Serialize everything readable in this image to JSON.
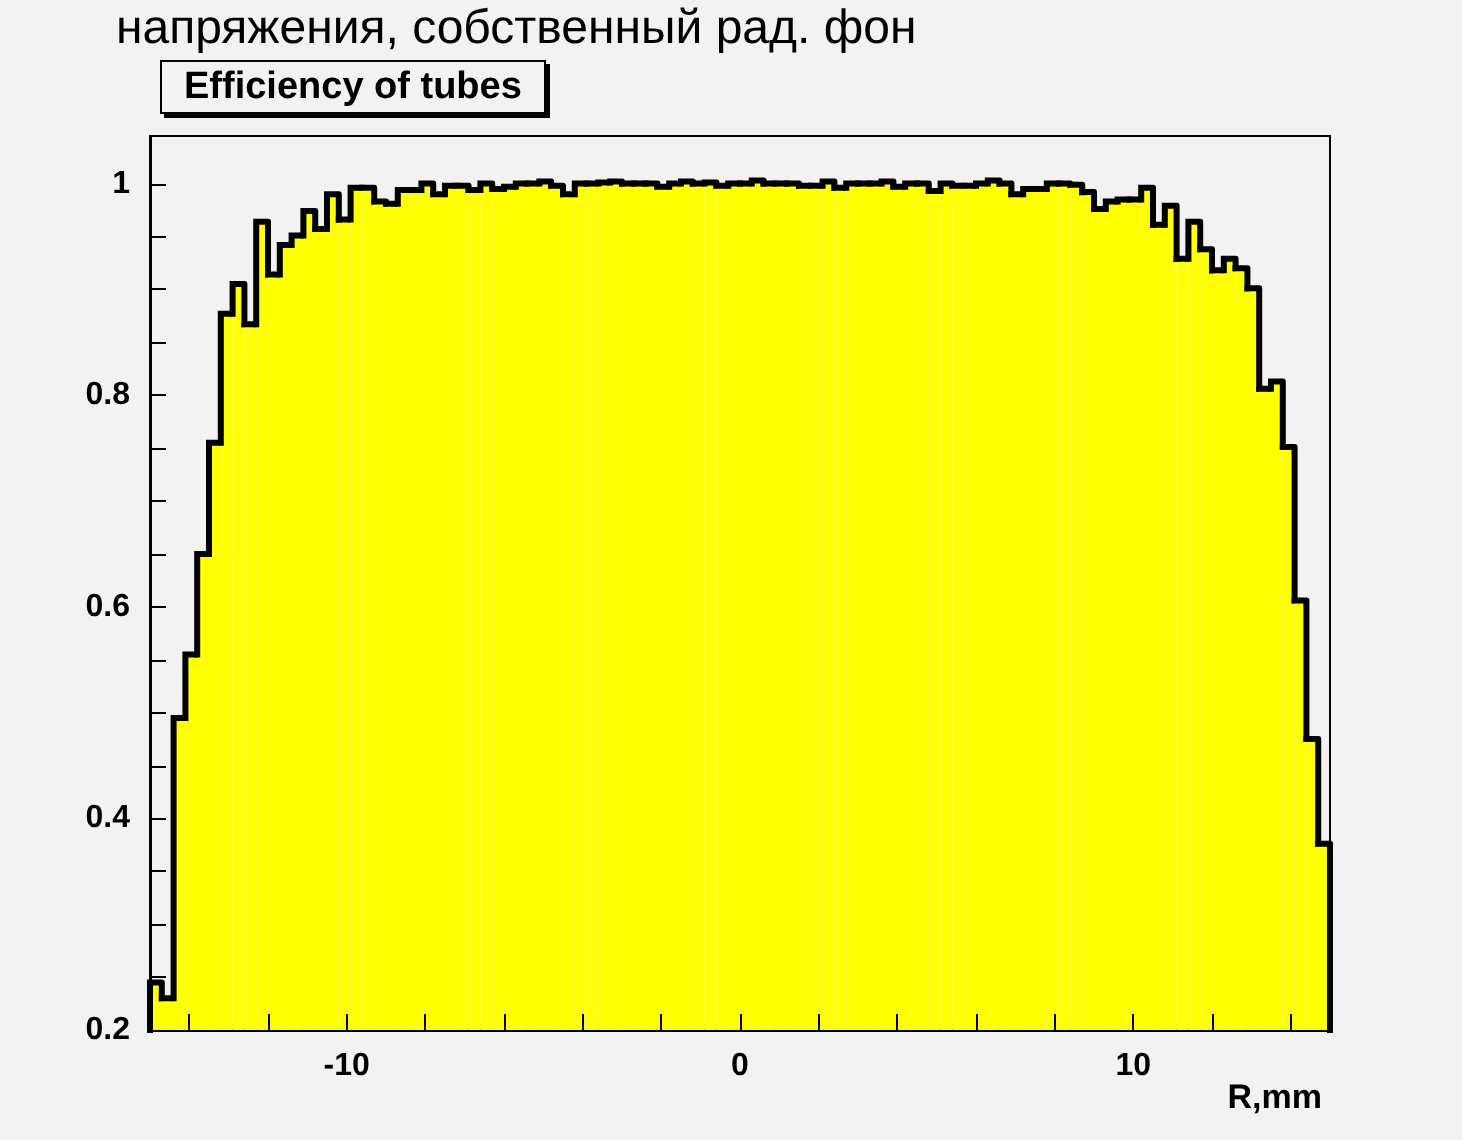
{
  "chart_data": {
    "type": "histogram",
    "title": "Efficiency of tubes",
    "xlabel": "R,mm",
    "annotations": [
      "напряжения, собственный рад. фон"
    ],
    "color": "#ffff00",
    "bins": [
      -15,
      -14.7,
      -14.4,
      -14.1,
      -13.8,
      -13.5,
      -13.2,
      -12.9,
      -12.6,
      -12.3,
      -12,
      -11.7,
      -11.4,
      -11.1,
      -10.8,
      -10.5,
      -10.2,
      -9.9,
      -9.6,
      -9.3,
      -9,
      -8.7,
      -8.4,
      -8.1,
      -7.8,
      -7.5,
      -7.2,
      -6.9,
      -6.6,
      -6.3,
      -6,
      -5.7,
      -5.4,
      -5.1,
      -4.8,
      -4.5,
      -4.2,
      -3.9,
      -3.6,
      -3.3,
      -3,
      -2.7,
      -2.4,
      -2.1,
      -1.8,
      -1.5,
      -1.2,
      -0.9,
      -0.6,
      -0.3,
      0,
      0.3,
      0.6,
      0.9,
      1.2,
      1.5,
      1.8,
      2.1,
      2.4,
      2.7,
      3,
      3.3,
      3.6,
      3.9,
      4.2,
      4.5,
      4.8,
      5.1,
      5.4,
      5.7,
      6,
      6.3,
      6.6,
      6.9,
      7.2,
      7.5,
      7.8,
      8.1,
      8.4,
      8.7,
      9,
      9.3,
      9.6,
      9.9,
      10.2,
      10.5,
      10.8,
      11.1,
      11.4,
      11.7,
      12,
      12.3,
      12.6,
      12.9,
      13.2,
      13.5,
      13.8,
      14.1,
      14.4,
      14.7,
      15
    ],
    "values": [
      0.245,
      0.23,
      0.495,
      0.555,
      0.65,
      0.755,
      0.877,
      0.905,
      0.867,
      0.964,
      0.914,
      0.942,
      0.951,
      0.974,
      0.957,
      0.99,
      0.966,
      0.996,
      0.996,
      0.983,
      0.981,
      0.994,
      0.994,
      1.0,
      0.99,
      0.998,
      0.998,
      0.994,
      1.0,
      0.995,
      0.997,
      1.0,
      1.0,
      1.002,
      0.998,
      0.99,
      1.0,
      1.0,
      1.001,
      1.002,
      1.0,
      1.0,
      1.0,
      0.997,
      1.0,
      1.002,
      1.0,
      1.001,
      0.998,
      1.0,
      1.0,
      1.003,
      1.0,
      1.0,
      1.0,
      0.998,
      0.998,
      1.002,
      0.996,
      1.0,
      1.0,
      1.0,
      1.002,
      0.997,
      1.0,
      1.0,
      0.993,
      1.0,
      0.998,
      0.998,
      1.0,
      1.003,
      1.0,
      0.99,
      0.995,
      0.995,
      1.0,
      1.0,
      0.999,
      0.992,
      0.976,
      0.983,
      0.985,
      0.985,
      0.996,
      0.961,
      0.979,
      0.929,
      0.964,
      0.938,
      0.918,
      0.929,
      0.92,
      0.901,
      0.806,
      0.813,
      0.751,
      0.606,
      0.475,
      0.376
    ],
    "xlim": [
      -15,
      15
    ],
    "ylim": [
      0.2,
      1.045
    ],
    "xticks": [
      {
        "value": -14,
        "label": null
      },
      {
        "value": -12,
        "label": null
      },
      -10,
      {
        "value": -8,
        "label": null
      },
      {
        "value": -6,
        "label": null
      },
      {
        "value": -4,
        "label": null
      },
      {
        "value": -2,
        "label": null
      },
      0,
      {
        "value": 2,
        "label": null
      },
      {
        "value": 4,
        "label": null
      },
      {
        "value": 6,
        "label": null
      },
      {
        "value": 8,
        "label": null
      },
      10,
      {
        "value": 12,
        "label": null
      },
      {
        "value": 14,
        "label": null
      }
    ],
    "yticks": [
      0.2,
      {
        "value": 0.25,
        "label": null
      },
      {
        "value": 0.3,
        "label": null
      },
      {
        "value": 0.35,
        "label": null
      },
      0.4,
      {
        "value": 0.45,
        "label": null
      },
      {
        "value": 0.5,
        "label": null
      },
      {
        "value": 0.55,
        "label": null
      },
      0.6,
      {
        "value": 0.65,
        "label": null
      },
      {
        "value": 0.7,
        "label": null
      },
      {
        "value": 0.75,
        "label": null
      },
      0.8,
      {
        "value": 0.85,
        "label": null
      },
      {
        "value": 0.9,
        "label": null
      },
      {
        "value": 0.95,
        "label": null
      },
      1
    ]
  }
}
